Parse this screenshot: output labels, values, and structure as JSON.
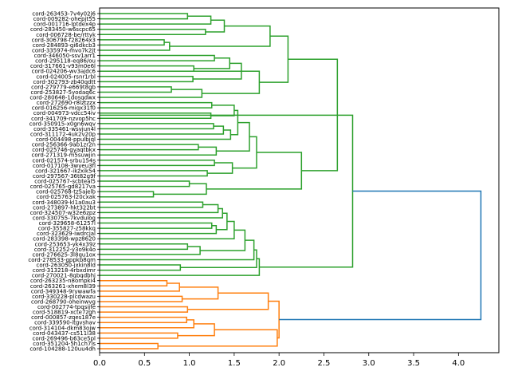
{
  "chart_data": {
    "type": "dendrogram",
    "orientation": "right",
    "xlim": [
      0.0,
      4.45
    ],
    "x_ticks": [
      0.0,
      0.5,
      1.0,
      1.5,
      2.0,
      2.5,
      3.0,
      3.5,
      4.0
    ],
    "x_tick_labels": [
      "0.0",
      "0.5",
      "1.0",
      "1.5",
      "2.0",
      "2.5",
      "3.0",
      "3.5",
      "4.0"
    ],
    "colors": {
      "green_cluster": "#2ca02c",
      "orange_cluster": "#ff7f0e",
      "root": "#1f77b4"
    },
    "leaves": [
      "cord-263453-7v4y02j6",
      "cord-009282-ohepjt55",
      "cord-001716-lptdex4p",
      "cord-283450-w6scpc65",
      "cord-006728-be/rttyk",
      "cord-306798-f28264x3",
      "cord-284893-gi6dkcb3",
      "cord-335974-mvo7k2jt",
      "cord-346050-ssv1arr1",
      "cord-295118-eq86/ou",
      "cord-317661-v93m0e6l",
      "cord-024206-wv3ajdc6",
      "cord-024005-rsnr1rbl",
      "cord-302793-zb40qdtt",
      "cord-279779-e669t8gb",
      "cord-253827-5yodaq6c",
      "cord-280648-1dosqdwx",
      "cord-272690-r8lztzzx",
      "cord-016256-miqx31f0",
      "cord-004973-vdcc54iv",
      "cord-341709-nzvop5hc",
      "cord-350915-x0gn6wqv",
      "cord-335461-wsvjun4l",
      "cord-311172-4uk2v20p",
      "cord-004498-ppulbjql",
      "cord-256366-9ab1zr2n",
      "cord-025746-gyaqtbkx",
      "cord-271319-m5suwjin",
      "cord-021574-srbu154s",
      "cord-017108-3wyeu3fl",
      "cord-321667-ikzxik54",
      "cord-297567-36t82g9f",
      "cord-025767-scbteal5",
      "cord-025765-gd8217va",
      "cord-025768-tz5ajelb",
      "cord-025763-l20cxak",
      "cord-348039-kl1a0au3",
      "cord-273897-hkt322bt",
      "cord-324507-w32e6zpz",
      "cord-330755-7kvdulog",
      "cord-329658-61257l",
      "cord-355827-z58kkq",
      "cord-323629-iwdrcjal",
      "cord-283398-wpz8620",
      "cord-253653-yk4x39z",
      "cord-312252-y3o9k4o",
      "cord-276625-3l8qu1ox",
      "cord-278533-gppkb8qm",
      "cord-263050-jxkin8ld",
      "cord-313218-4rbxdimr",
      "cord-270021-8qbqdbhj",
      "cord-263235-n8ompki4",
      "cord-263261-xhem8l39",
      "cord-349348-9rywawfa",
      "cord-330228-plcdwazu",
      "cord-268790-oheinwvg",
      "cord-002774-tpqsijfe",
      "cord-518819-xcte7zgh",
      "cord-000857-zqes187e",
      "cord-339590-itgvshav",
      "cord-314104-dkm83ojw",
      "cord-043437-cs511l38",
      "cord-269496-b63ce5pl",
      "cord-351204-5h1ch7ls",
      "cord-104288-120uu4dh"
    ],
    "links": [
      {
        "a": 0,
        "b": 1,
        "h": 0.98,
        "c": "green_cluster"
      },
      {
        "a": 0.5,
        "b": 2,
        "h": 1.24,
        "c": "green_cluster"
      },
      {
        "a": 3,
        "b": 4,
        "h": 1.18,
        "c": "green_cluster"
      },
      {
        "a": 1.25,
        "b": 3.5,
        "h": 1.39,
        "c": "green_cluster"
      },
      {
        "a": 5,
        "b": 6,
        "h": 0.72,
        "c": "green_cluster"
      },
      {
        "a": 5.5,
        "b": 7,
        "h": 0.78,
        "c": "green_cluster"
      },
      {
        "a": 2.375,
        "b": 6.25,
        "h": 1.9,
        "c": "green_cluster"
      },
      {
        "a": 8,
        "b": 9,
        "h": 1.28,
        "c": "green_cluster"
      },
      {
        "a": 10,
        "b": 11,
        "h": 1.05,
        "c": "green_cluster"
      },
      {
        "a": 8.5,
        "b": 10.5,
        "h": 1.45,
        "c": "green_cluster"
      },
      {
        "a": 12,
        "b": 13,
        "h": 1.04,
        "c": "green_cluster"
      },
      {
        "a": 9.5,
        "b": 12.5,
        "h": 1.58,
        "c": "green_cluster"
      },
      {
        "a": 14,
        "b": 15,
        "h": 0.8,
        "c": "green_cluster"
      },
      {
        "a": 14.5,
        "b": 16,
        "h": 1.14,
        "c": "green_cluster"
      },
      {
        "a": 11.0,
        "b": 15.25,
        "h": 1.78,
        "c": "green_cluster"
      },
      {
        "a": 4.3125,
        "b": 13.125,
        "h": 2.1,
        "c": "green_cluster"
      },
      {
        "a": 17,
        "b": 18,
        "h": 1.25,
        "c": "green_cluster"
      },
      {
        "a": 19,
        "b": 20,
        "h": 1.24,
        "c": "green_cluster"
      },
      {
        "a": 17.5,
        "b": 19.5,
        "h": 1.5,
        "c": "green_cluster"
      },
      {
        "a": 21,
        "b": 22,
        "h": 1.27,
        "c": "green_cluster"
      },
      {
        "a": 21.5,
        "b": 23,
        "h": 1.38,
        "c": "green_cluster"
      },
      {
        "a": 22.25,
        "b": 24,
        "h": 1.46,
        "c": "green_cluster"
      },
      {
        "a": 18.5,
        "b": 23.125,
        "h": 1.54,
        "c": "green_cluster"
      },
      {
        "a": 25,
        "b": 26,
        "h": 1.1,
        "c": "green_cluster"
      },
      {
        "a": 25.5,
        "b": 27,
        "h": 1.3,
        "c": "green_cluster"
      },
      {
        "a": 20.8125,
        "b": 26.25,
        "h": 1.67,
        "c": "green_cluster"
      },
      {
        "a": 28,
        "b": 29,
        "h": 1.28,
        "c": "green_cluster"
      },
      {
        "a": 30,
        "b": 31,
        "h": 1.2,
        "c": "green_cluster"
      },
      {
        "a": 28.5,
        "b": 30.5,
        "h": 1.48,
        "c": "green_cluster"
      },
      {
        "a": 23.53125,
        "b": 29.5,
        "h": 1.75,
        "c": "green_cluster"
      },
      {
        "a": 32,
        "b": 33,
        "h": 1.0,
        "c": "green_cluster"
      },
      {
        "a": 34,
        "b": 35,
        "h": 0.6,
        "c": "green_cluster"
      },
      {
        "a": 32.5,
        "b": 34.5,
        "h": 1.19,
        "c": "green_cluster"
      },
      {
        "a": 26.515625,
        "b": 33.5,
        "h": 2.25,
        "c": "green_cluster"
      },
      {
        "a": 8.71875,
        "b": 30.0078,
        "h": 2.65,
        "c": "green_cluster"
      },
      {
        "a": 36,
        "b": 37,
        "h": 1.15,
        "c": "green_cluster"
      },
      {
        "a": 36.5,
        "b": 38,
        "h": 1.32,
        "c": "green_cluster"
      },
      {
        "a": 37.25,
        "b": 39,
        "h": 1.37,
        "c": "green_cluster"
      },
      {
        "a": 40,
        "b": 41,
        "h": 1.25,
        "c": "green_cluster"
      },
      {
        "a": 40.5,
        "b": 42,
        "h": 1.3,
        "c": "green_cluster"
      },
      {
        "a": 38.125,
        "b": 41.25,
        "h": 1.42,
        "c": "green_cluster"
      },
      {
        "a": 39.6875,
        "b": 43,
        "h": 1.5,
        "c": "green_cluster"
      },
      {
        "a": 44,
        "b": 45,
        "h": 0.98,
        "c": "green_cluster"
      },
      {
        "a": 44.5,
        "b": 46,
        "h": 1.12,
        "c": "green_cluster"
      },
      {
        "a": 41.34375,
        "b": 45.25,
        "h": 1.62,
        "c": "green_cluster"
      },
      {
        "a": 43.296875,
        "b": 47,
        "h": 1.72,
        "c": "green_cluster"
      },
      {
        "a": 48,
        "b": 49,
        "h": 0.9,
        "c": "green_cluster"
      },
      {
        "a": 45.1484,
        "b": 48.5,
        "h": 1.75,
        "c": "green_cluster"
      },
      {
        "a": 46.8242,
        "b": 50,
        "h": 1.78,
        "c": "green_cluster"
      },
      {
        "a": 19.416,
        "b": 48.4121,
        "h": 2.82,
        "c": "green_cluster"
      },
      {
        "a": 51,
        "b": 52,
        "h": 0.75,
        "c": "orange_cluster"
      },
      {
        "a": 51.5,
        "b": 53,
        "h": 0.89,
        "c": "orange_cluster"
      },
      {
        "a": 54,
        "b": 55,
        "h": 0.92,
        "c": "orange_cluster"
      },
      {
        "a": 52.25,
        "b": 54.5,
        "h": 1.32,
        "c": "orange_cluster"
      },
      {
        "a": 56,
        "b": 57,
        "h": 0.98,
        "c": "orange_cluster"
      },
      {
        "a": 53.375,
        "b": 56.5,
        "h": 1.88,
        "c": "orange_cluster"
      },
      {
        "a": 58,
        "b": 59,
        "h": 0.97,
        "c": "orange_cluster"
      },
      {
        "a": 58.5,
        "b": 60,
        "h": 1.05,
        "c": "orange_cluster"
      },
      {
        "a": 61,
        "b": 62,
        "h": 0.87,
        "c": "orange_cluster"
      },
      {
        "a": 59.25,
        "b": 61.5,
        "h": 1.28,
        "c": "orange_cluster"
      },
      {
        "a": 63,
        "b": 64,
        "h": 0.65,
        "c": "orange_cluster"
      },
      {
        "a": 60.375,
        "b": 63.5,
        "h": 1.98,
        "c": "orange_cluster"
      },
      {
        "a": 54.9375,
        "b": 61.9375,
        "h": 2.0,
        "c": "orange_cluster"
      },
      {
        "a": 33.9141,
        "b": 58.4375,
        "h": 4.25,
        "c": "root"
      }
    ]
  }
}
